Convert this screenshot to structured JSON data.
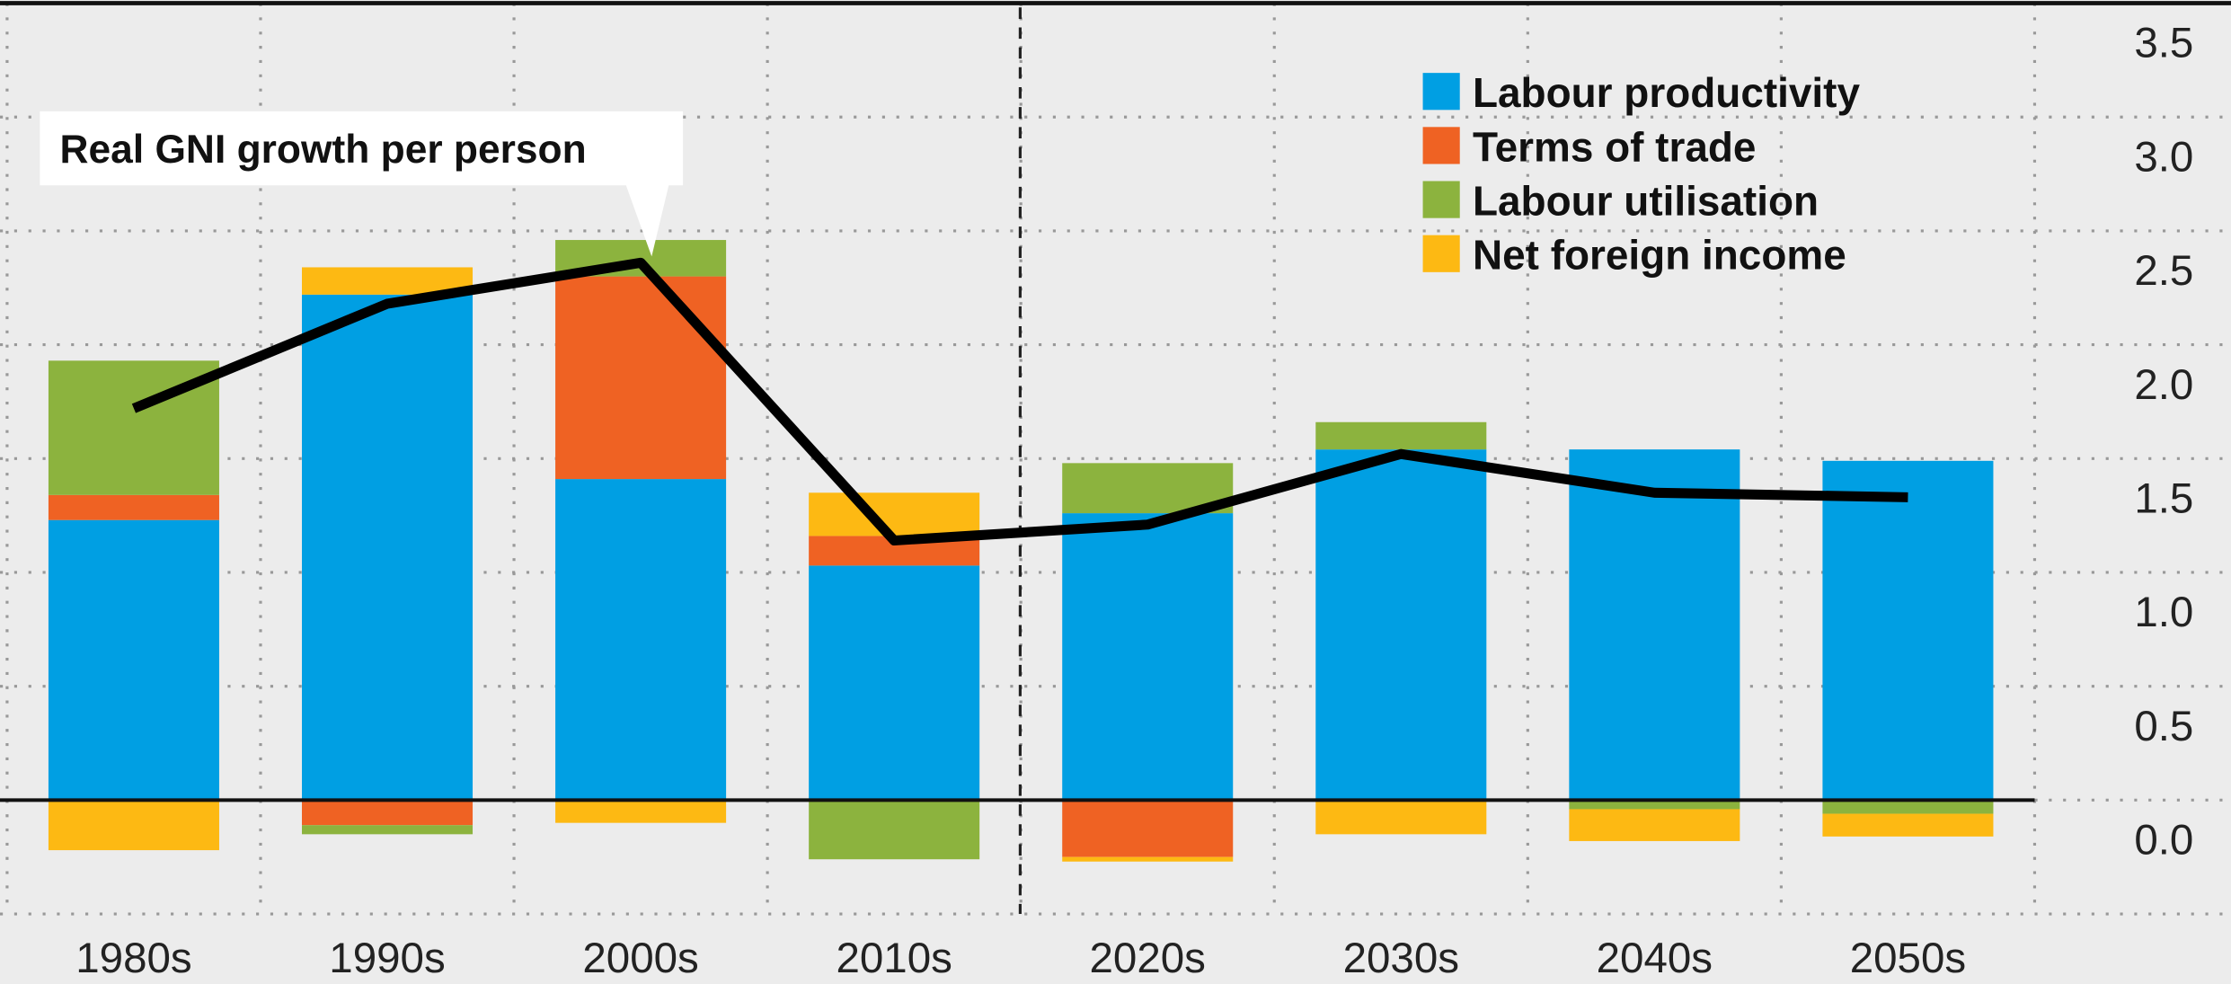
{
  "chart_data": {
    "type": "bar",
    "stacked": true,
    "categories": [
      "1980s",
      "1990s",
      "2000s",
      "2010s",
      "2020s",
      "2030s",
      "2040s",
      "2050s"
    ],
    "series": [
      {
        "name": "Labour productivity",
        "color": "#009fe3",
        "values": [
          1.23,
          2.22,
          1.41,
          1.03,
          1.26,
          1.54,
          1.54,
          1.49
        ]
      },
      {
        "name": "Terms of trade",
        "color": "#ef6223",
        "values": [
          0.11,
          -0.11,
          0.89,
          0.13,
          -0.25,
          0,
          0,
          0
        ]
      },
      {
        "name": "Labour utilisation",
        "color": "#8cb33e",
        "values": [
          0.59,
          -0.04,
          0.16,
          -0.26,
          0.22,
          0.12,
          -0.04,
          -0.06
        ]
      },
      {
        "name": "Net foreign income",
        "color": "#fdb913",
        "values": [
          -0.22,
          0.12,
          -0.1,
          0.19,
          -0.02,
          -0.15,
          -0.14,
          -0.1
        ]
      }
    ],
    "line": {
      "name": "Real GNI growth per person",
      "color": "#000000",
      "values": [
        1.72,
        2.18,
        2.36,
        1.14,
        1.21,
        1.52,
        1.35,
        1.33
      ]
    },
    "ylim": [
      -0.5,
      3.5
    ],
    "yticks": [
      {
        "value": 0,
        "label": "0.0"
      },
      0.5,
      {
        "value": 1,
        "label": "1.0"
      },
      1.5,
      {
        "value": 2,
        "label": "2.0"
      },
      2.5,
      {
        "value": 3,
        "label": "3.0"
      },
      3.5
    ],
    "y_axis_side": "right",
    "grid": true,
    "legend": "top-right"
  }
}
